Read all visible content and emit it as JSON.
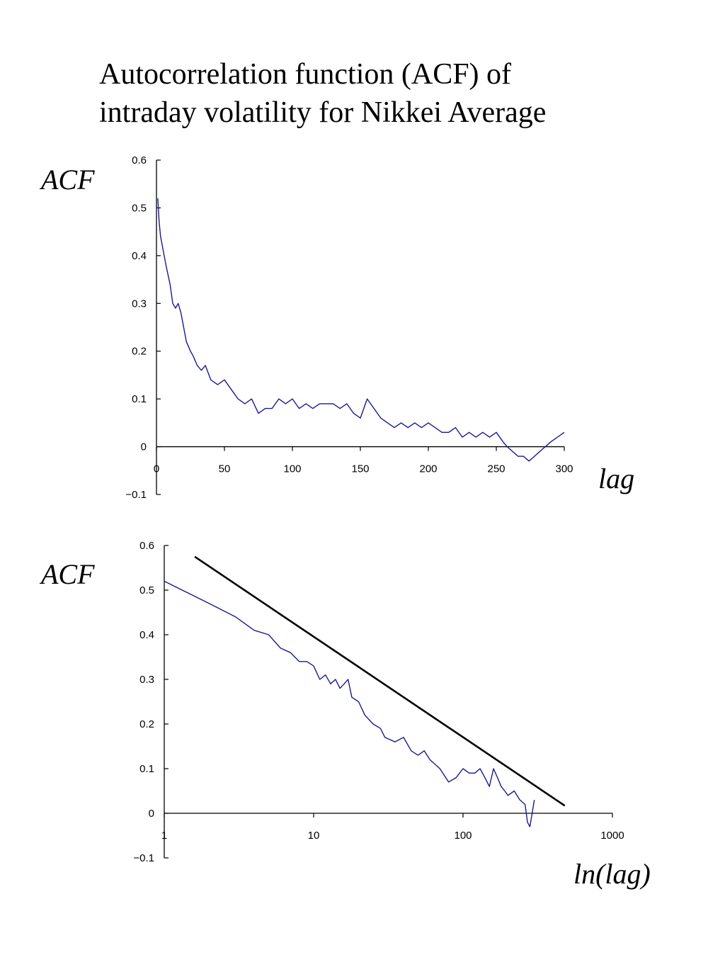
{
  "title_lines": [
    "Autocorrelation function (ACF) of",
    "intraday volatility for Nikkei Average"
  ],
  "chart_data": [
    {
      "type": "line",
      "ylabel": "ACF",
      "xlabel": "lag",
      "xscale": "linear",
      "xlim": [
        0,
        300
      ],
      "ylim": [
        -0.1,
        0.6
      ],
      "xticks": [
        "0",
        "50",
        "100",
        "150",
        "200",
        "250",
        "300"
      ],
      "yticks": [
        "0.6",
        "0.5",
        "0.4",
        "0.3",
        "0.2",
        "0.1",
        "0",
        "−0.1"
      ],
      "grid": false,
      "color": "#1a1a8c",
      "series": [
        {
          "x": [
            1,
            2,
            3,
            5,
            7,
            10,
            12,
            14,
            16,
            18,
            20,
            22,
            25,
            27,
            30,
            33,
            36,
            40,
            45,
            50,
            55,
            60,
            65,
            70,
            75,
            80,
            85,
            90,
            95,
            100,
            105,
            110,
            115,
            120,
            125,
            130,
            135,
            140,
            145,
            150,
            155,
            160,
            165,
            170,
            175,
            180,
            185,
            190,
            195,
            200,
            205,
            210,
            215,
            220,
            225,
            230,
            235,
            240,
            245,
            250,
            255,
            258,
            262,
            266,
            270,
            274,
            278,
            282,
            286,
            290,
            295,
            300
          ],
          "y": [
            0.52,
            0.47,
            0.44,
            0.41,
            0.38,
            0.34,
            0.3,
            0.29,
            0.3,
            0.28,
            0.25,
            0.22,
            0.2,
            0.19,
            0.17,
            0.16,
            0.17,
            0.14,
            0.13,
            0.14,
            0.12,
            0.1,
            0.09,
            0.1,
            0.07,
            0.08,
            0.08,
            0.1,
            0.09,
            0.1,
            0.08,
            0.09,
            0.08,
            0.09,
            0.09,
            0.09,
            0.08,
            0.09,
            0.07,
            0.06,
            0.1,
            0.08,
            0.06,
            0.05,
            0.04,
            0.05,
            0.04,
            0.05,
            0.04,
            0.05,
            0.04,
            0.03,
            0.03,
            0.04,
            0.02,
            0.03,
            0.02,
            0.03,
            0.02,
            0.03,
            0.01,
            0.0,
            -0.01,
            -0.02,
            -0.02,
            -0.03,
            -0.02,
            -0.01,
            0.0,
            0.01,
            0.02,
            0.03
          ]
        }
      ]
    },
    {
      "type": "line",
      "ylabel": "ACF",
      "xlabel": "ln(lag)",
      "xscale": "log",
      "xlim": [
        1,
        1000
      ],
      "ylim": [
        -0.1,
        0.6
      ],
      "xticks": [
        "1",
        "10",
        "100",
        "1000"
      ],
      "yticks": [
        "0.6",
        "0.5",
        "0.4",
        "0.3",
        "0.2",
        "0.1",
        "0",
        "−0.1"
      ],
      "grid": false,
      "series": [
        {
          "color": "#1a1a8c",
          "x": [
            1,
            2,
            3,
            4,
            5,
            6,
            7,
            8,
            9,
            10,
            11,
            12,
            13,
            14,
            15,
            16,
            17,
            18,
            20,
            22,
            25,
            28,
            30,
            35,
            40,
            45,
            50,
            55,
            60,
            70,
            80,
            90,
            100,
            110,
            120,
            130,
            140,
            150,
            160,
            170,
            180,
            190,
            200,
            220,
            240,
            260,
            270,
            280,
            290,
            300
          ],
          "y": [
            0.52,
            0.47,
            0.44,
            0.41,
            0.4,
            0.37,
            0.36,
            0.34,
            0.34,
            0.33,
            0.3,
            0.31,
            0.29,
            0.3,
            0.28,
            0.29,
            0.3,
            0.26,
            0.25,
            0.22,
            0.2,
            0.19,
            0.17,
            0.16,
            0.17,
            0.14,
            0.13,
            0.14,
            0.12,
            0.1,
            0.07,
            0.08,
            0.1,
            0.09,
            0.09,
            0.1,
            0.08,
            0.06,
            0.1,
            0.08,
            0.06,
            0.05,
            0.04,
            0.05,
            0.03,
            0.02,
            -0.02,
            -0.03,
            0.0,
            0.03
          ]
        },
        {
          "color": "#000000",
          "x": [
            1.6,
            480
          ],
          "y": [
            0.575,
            0.017
          ]
        }
      ]
    }
  ]
}
